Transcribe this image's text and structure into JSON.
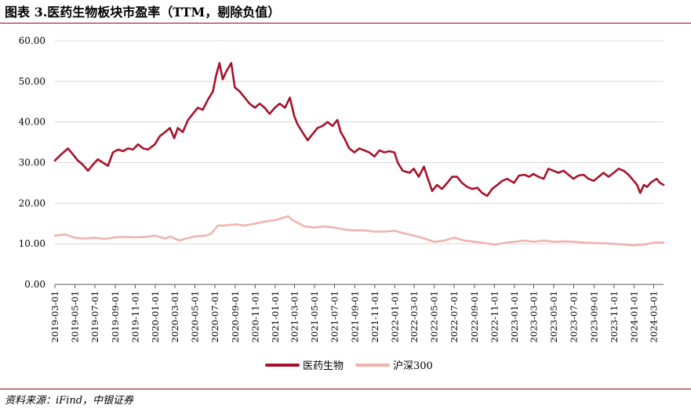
{
  "title": "图表 3.医药生物板块市盈率（TTM，剔除负值）",
  "source": "资料来源：iFind，中银证券",
  "chart_data": {
    "type": "line",
    "title": "图表 3.医药生物板块市盈率（TTM，剔除负值）",
    "xlabel": "",
    "ylabel": "",
    "ylim": [
      0,
      60
    ],
    "yticks": [
      "0.00",
      "10.00",
      "20.00",
      "30.00",
      "40.00",
      "50.00",
      "60.00"
    ],
    "xticks": [
      "2019-03-01",
      "2019-05-01",
      "2019-07-01",
      "2019-09-01",
      "2019-11-01",
      "2020-01-01",
      "2020-03-01",
      "2020-05-01",
      "2020-07-01",
      "2020-09-01",
      "2020-11-01",
      "2021-01-01",
      "2021-03-01",
      "2021-05-01",
      "2021-07-01",
      "2021-09-01",
      "2021-11-01",
      "2022-01-01",
      "2022-03-01",
      "2022-05-01",
      "2022-07-01",
      "2022-09-01",
      "2022-11-01",
      "2023-01-01",
      "2023-03-01",
      "2023-05-01",
      "2023-07-01",
      "2023-09-01",
      "2023-11-01",
      "2024-01-01",
      "2024-03-01"
    ],
    "x_range": [
      "2019-03-01",
      "2024-03-31"
    ],
    "grid": "horizontal",
    "legend": "bottom-center",
    "series": [
      {
        "name": "医药生物",
        "color": "#a8112a",
        "points": [
          [
            "2019-03-01",
            30.5
          ],
          [
            "2019-03-20",
            32.0
          ],
          [
            "2019-04-10",
            33.5
          ],
          [
            "2019-04-25",
            32.0
          ],
          [
            "2019-05-10",
            30.5
          ],
          [
            "2019-05-25",
            29.5
          ],
          [
            "2019-06-10",
            28.0
          ],
          [
            "2019-06-25",
            29.5
          ],
          [
            "2019-07-10",
            30.8
          ],
          [
            "2019-07-25",
            30.0
          ],
          [
            "2019-08-10",
            29.2
          ],
          [
            "2019-08-25",
            32.5
          ],
          [
            "2019-09-10",
            33.2
          ],
          [
            "2019-09-25",
            32.8
          ],
          [
            "2019-10-10",
            33.5
          ],
          [
            "2019-10-25",
            33.2
          ],
          [
            "2019-11-10",
            34.5
          ],
          [
            "2019-11-25",
            33.5
          ],
          [
            "2019-12-10",
            33.2
          ],
          [
            "2019-12-31",
            34.5
          ],
          [
            "2020-01-15",
            36.5
          ],
          [
            "2020-01-31",
            37.5
          ],
          [
            "2020-02-15",
            38.5
          ],
          [
            "2020-02-28",
            36.0
          ],
          [
            "2020-03-10",
            38.5
          ],
          [
            "2020-03-25",
            37.5
          ],
          [
            "2020-04-10",
            40.5
          ],
          [
            "2020-04-25",
            42.0
          ],
          [
            "2020-05-10",
            43.5
          ],
          [
            "2020-05-25",
            43.0
          ],
          [
            "2020-06-10",
            45.5
          ],
          [
            "2020-06-25",
            47.5
          ],
          [
            "2020-07-05",
            51.5
          ],
          [
            "2020-07-15",
            54.5
          ],
          [
            "2020-07-25",
            50.5
          ],
          [
            "2020-08-05",
            52.5
          ],
          [
            "2020-08-20",
            54.5
          ],
          [
            "2020-08-31",
            48.5
          ],
          [
            "2020-09-15",
            47.5
          ],
          [
            "2020-09-30",
            46.0
          ],
          [
            "2020-10-15",
            44.5
          ],
          [
            "2020-10-31",
            43.5
          ],
          [
            "2020-11-15",
            44.5
          ],
          [
            "2020-11-30",
            43.5
          ],
          [
            "2020-12-15",
            42.0
          ],
          [
            "2020-12-31",
            43.5
          ],
          [
            "2021-01-15",
            44.5
          ],
          [
            "2021-01-31",
            43.5
          ],
          [
            "2021-02-15",
            46.0
          ],
          [
            "2021-02-28",
            41.5
          ],
          [
            "2021-03-10",
            39.5
          ],
          [
            "2021-03-25",
            37.5
          ],
          [
            "2021-04-10",
            35.5
          ],
          [
            "2021-04-25",
            37.0
          ],
          [
            "2021-05-10",
            38.5
          ],
          [
            "2021-05-25",
            39.0
          ],
          [
            "2021-06-10",
            40.0
          ],
          [
            "2021-06-25",
            39.0
          ],
          [
            "2021-07-10",
            40.5
          ],
          [
            "2021-07-20",
            37.5
          ],
          [
            "2021-07-31",
            36.0
          ],
          [
            "2021-08-15",
            33.5
          ],
          [
            "2021-08-31",
            32.5
          ],
          [
            "2021-09-15",
            33.5
          ],
          [
            "2021-09-30",
            33.0
          ],
          [
            "2021-10-15",
            32.5
          ],
          [
            "2021-10-31",
            31.5
          ],
          [
            "2021-11-15",
            33.0
          ],
          [
            "2021-11-30",
            32.5
          ],
          [
            "2021-12-15",
            32.8
          ],
          [
            "2021-12-31",
            32.5
          ],
          [
            "2022-01-10",
            30.0
          ],
          [
            "2022-01-25",
            28.0
          ],
          [
            "2022-02-15",
            27.5
          ],
          [
            "2022-02-28",
            28.5
          ],
          [
            "2022-03-15",
            26.5
          ],
          [
            "2022-03-31",
            29.0
          ],
          [
            "2022-04-10",
            26.5
          ],
          [
            "2022-04-25",
            23.0
          ],
          [
            "2022-05-10",
            24.5
          ],
          [
            "2022-05-25",
            23.5
          ],
          [
            "2022-06-10",
            25.0
          ],
          [
            "2022-06-25",
            26.5
          ],
          [
            "2022-07-10",
            26.5
          ],
          [
            "2022-07-25",
            25.0
          ],
          [
            "2022-08-10",
            24.0
          ],
          [
            "2022-08-25",
            23.5
          ],
          [
            "2022-09-10",
            23.8
          ],
          [
            "2022-09-25",
            22.5
          ],
          [
            "2022-10-10",
            21.8
          ],
          [
            "2022-10-25",
            23.5
          ],
          [
            "2022-11-10",
            24.5
          ],
          [
            "2022-11-25",
            25.5
          ],
          [
            "2022-12-10",
            26.0
          ],
          [
            "2022-12-31",
            25.0
          ],
          [
            "2023-01-15",
            26.8
          ],
          [
            "2023-01-31",
            27.0
          ],
          [
            "2023-02-15",
            26.5
          ],
          [
            "2023-02-28",
            27.2
          ],
          [
            "2023-03-15",
            26.5
          ],
          [
            "2023-03-31",
            26.0
          ],
          [
            "2023-04-15",
            28.5
          ],
          [
            "2023-04-30",
            28.0
          ],
          [
            "2023-05-15",
            27.5
          ],
          [
            "2023-05-31",
            28.0
          ],
          [
            "2023-06-15",
            27.0
          ],
          [
            "2023-06-30",
            26.0
          ],
          [
            "2023-07-15",
            26.8
          ],
          [
            "2023-07-31",
            27.0
          ],
          [
            "2023-08-15",
            26.0
          ],
          [
            "2023-08-31",
            25.5
          ],
          [
            "2023-09-15",
            26.5
          ],
          [
            "2023-09-30",
            27.5
          ],
          [
            "2023-10-15",
            26.5
          ],
          [
            "2023-10-31",
            27.5
          ],
          [
            "2023-11-15",
            28.5
          ],
          [
            "2023-11-30",
            28.0
          ],
          [
            "2023-12-15",
            27.0
          ],
          [
            "2023-12-31",
            25.5
          ],
          [
            "2024-01-10",
            24.5
          ],
          [
            "2024-01-20",
            22.5
          ],
          [
            "2024-01-31",
            24.5
          ],
          [
            "2024-02-10",
            24.0
          ],
          [
            "2024-02-20",
            25.0
          ],
          [
            "2024-02-29",
            25.5
          ],
          [
            "2024-03-10",
            26.0
          ],
          [
            "2024-03-20",
            25.0
          ],
          [
            "2024-03-31",
            24.5
          ]
        ]
      },
      {
        "name": "沪深300",
        "color": "#f0b4ae",
        "points": [
          [
            "2019-03-01",
            12.0
          ],
          [
            "2019-04-01",
            12.3
          ],
          [
            "2019-05-01",
            11.5
          ],
          [
            "2019-06-01",
            11.3
          ],
          [
            "2019-07-01",
            11.5
          ],
          [
            "2019-08-01",
            11.2
          ],
          [
            "2019-09-01",
            11.6
          ],
          [
            "2019-10-01",
            11.7
          ],
          [
            "2019-11-01",
            11.6
          ],
          [
            "2019-12-01",
            11.7
          ],
          [
            "2020-01-01",
            12.0
          ],
          [
            "2020-02-01",
            11.3
          ],
          [
            "2020-02-15",
            11.8
          ],
          [
            "2020-03-15",
            10.8
          ],
          [
            "2020-04-01",
            11.2
          ],
          [
            "2020-05-01",
            11.8
          ],
          [
            "2020-06-01",
            12.0
          ],
          [
            "2020-06-20",
            12.5
          ],
          [
            "2020-07-10",
            14.5
          ],
          [
            "2020-08-01",
            14.5
          ],
          [
            "2020-09-01",
            14.8
          ],
          [
            "2020-10-01",
            14.5
          ],
          [
            "2020-11-01",
            15.0
          ],
          [
            "2020-12-01",
            15.5
          ],
          [
            "2021-01-01",
            15.8
          ],
          [
            "2021-02-10",
            16.8
          ],
          [
            "2021-02-20",
            16.0
          ],
          [
            "2021-03-10",
            15.2
          ],
          [
            "2021-04-01",
            14.3
          ],
          [
            "2021-05-01",
            14.0
          ],
          [
            "2021-06-01",
            14.3
          ],
          [
            "2021-07-01",
            14.0
          ],
          [
            "2021-08-01",
            13.5
          ],
          [
            "2021-09-01",
            13.3
          ],
          [
            "2021-10-01",
            13.3
          ],
          [
            "2021-11-01",
            13.0
          ],
          [
            "2021-12-01",
            13.0
          ],
          [
            "2022-01-01",
            13.2
          ],
          [
            "2022-02-01",
            12.5
          ],
          [
            "2022-03-01",
            12.0
          ],
          [
            "2022-04-01",
            11.3
          ],
          [
            "2022-05-01",
            10.5
          ],
          [
            "2022-06-01",
            10.8
          ],
          [
            "2022-07-01",
            11.5
          ],
          [
            "2022-08-01",
            10.8
          ],
          [
            "2022-09-01",
            10.5
          ],
          [
            "2022-10-01",
            10.2
          ],
          [
            "2022-11-01",
            9.8
          ],
          [
            "2022-12-01",
            10.2
          ],
          [
            "2023-01-01",
            10.5
          ],
          [
            "2023-02-01",
            10.8
          ],
          [
            "2023-03-01",
            10.5
          ],
          [
            "2023-04-01",
            10.8
          ],
          [
            "2023-05-01",
            10.5
          ],
          [
            "2023-06-01",
            10.6
          ],
          [
            "2023-07-01",
            10.5
          ],
          [
            "2023-08-01",
            10.3
          ],
          [
            "2023-09-01",
            10.2
          ],
          [
            "2023-10-01",
            10.1
          ],
          [
            "2023-11-01",
            10.0
          ],
          [
            "2023-12-01",
            9.8
          ],
          [
            "2024-01-01",
            9.6
          ],
          [
            "2024-02-01",
            9.8
          ],
          [
            "2024-03-01",
            10.3
          ],
          [
            "2024-03-31",
            10.3
          ]
        ]
      }
    ]
  }
}
